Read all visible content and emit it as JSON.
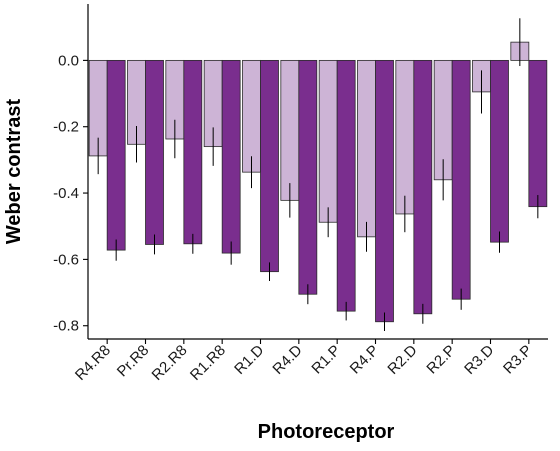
{
  "chart_data": {
    "type": "bar",
    "title": "",
    "xlabel": "Photoreceptor",
    "ylabel": "Weber contrast",
    "ylim": [
      -0.84,
      0.17
    ],
    "yticks": [
      0.0,
      -0.2,
      -0.4,
      -0.6,
      -0.8
    ],
    "ytick_labels": [
      "0.0",
      "-0.2",
      "-0.4",
      "-0.6",
      "-0.8"
    ],
    "grid": false,
    "legend": "none",
    "categories": [
      "R4.R8",
      "Pr.R8",
      "R2.R8",
      "R1.R8",
      "R1.D",
      "R4.D",
      "R1.P",
      "R4.P",
      "R2.D",
      "R2.P",
      "R3.D",
      "R3.P"
    ],
    "series": [
      {
        "color": "#cdb4d6",
        "values": [
          -0.288,
          -0.253,
          -0.237,
          -0.26,
          -0.337,
          -0.422,
          -0.488,
          -0.532,
          -0.463,
          -0.36,
          -0.095,
          0.055
        ],
        "errors": [
          0.055,
          0.055,
          0.058,
          0.058,
          0.048,
          0.052,
          0.045,
          0.045,
          0.055,
          0.062,
          0.065,
          0.072
        ]
      },
      {
        "color": "#7a2e8e",
        "values": [
          -0.572,
          -0.555,
          -0.553,
          -0.581,
          -0.637,
          -0.705,
          -0.756,
          -0.788,
          -0.764,
          -0.72,
          -0.548,
          -0.441
        ],
        "errors": [
          0.032,
          0.03,
          0.03,
          0.035,
          0.028,
          0.03,
          0.028,
          0.028,
          0.03,
          0.032,
          0.032,
          0.035
        ]
      }
    ]
  }
}
